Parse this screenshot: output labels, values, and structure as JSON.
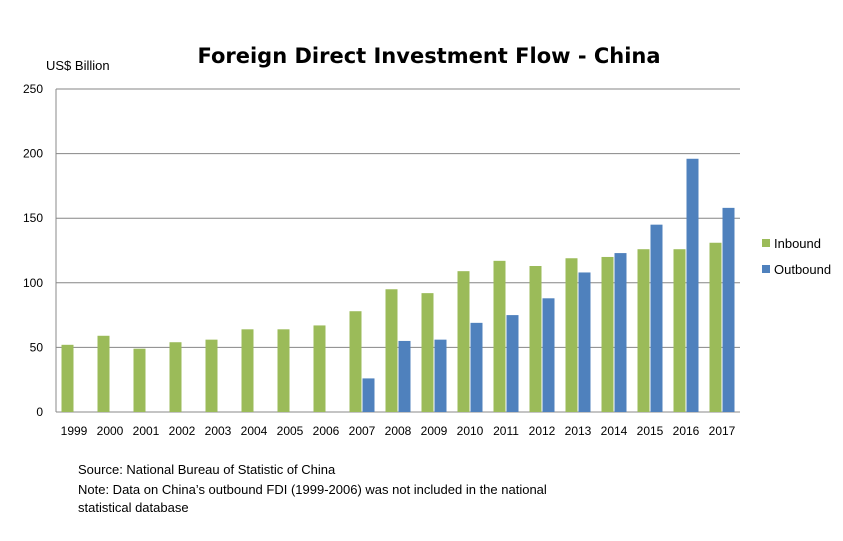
{
  "chart_data": {
    "type": "bar",
    "title": "Foreign Direct Investment Flow - China",
    "ylabel": "US$ Billion",
    "xlabel": "",
    "ylim": [
      0,
      250
    ],
    "yticks": [
      0,
      50,
      100,
      150,
      200,
      250
    ],
    "grid": true,
    "legend_position": "right",
    "categories": [
      "1999",
      "2000",
      "2001",
      "2002",
      "2003",
      "2004",
      "2005",
      "2006",
      "2007",
      "2008",
      "2009",
      "2010",
      "2011",
      "2012",
      "2013",
      "2014",
      "2015",
      "2016",
      "2017"
    ],
    "series": [
      {
        "name": "Inbound",
        "color": "#9bbb59",
        "values": [
          52,
          59,
          49,
          54,
          56,
          64,
          64,
          67,
          78,
          95,
          92,
          109,
          117,
          113,
          119,
          120,
          126,
          126,
          131
        ]
      },
      {
        "name": "Outbound",
        "color": "#4f81bd",
        "values": [
          null,
          null,
          null,
          null,
          null,
          null,
          null,
          null,
          26,
          55,
          56,
          69,
          75,
          88,
          108,
          123,
          145,
          196,
          158
        ]
      }
    ]
  },
  "notes": {
    "source": "Source: National Bureau of Statistic of China",
    "note_line1": "Note: Data on China’s outbound FDI (1999-2006) was not included in the national",
    "note_line2": "statistical database"
  }
}
